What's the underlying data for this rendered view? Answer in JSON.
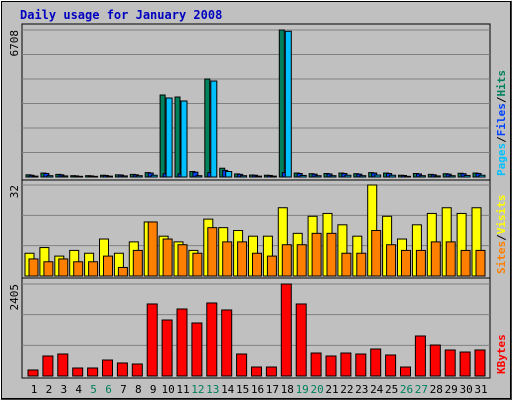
{
  "title": "Daily usage for January 2008",
  "separator": "/",
  "chart_data": [
    {
      "type": "bar",
      "series": [
        {
          "name": "Hits",
          "color": "#00805c",
          "values": [
            100,
            180,
            120,
            60,
            60,
            80,
            100,
            120,
            200,
            3742,
            3650,
            250,
            4472,
            400,
            140,
            90,
            80,
            6708,
            180,
            150,
            160,
            180,
            150,
            200,
            180,
            80,
            160,
            120,
            150,
            170,
            180
          ]
        },
        {
          "name": "Files",
          "color": "#0040ff",
          "values": [
            80,
            160,
            100,
            50,
            50,
            70,
            90,
            100,
            180,
            150,
            140,
            220,
            200,
            300,
            120,
            80,
            70,
            200,
            160,
            130,
            140,
            160,
            130,
            180,
            160,
            70,
            140,
            100,
            130,
            150,
            160
          ]
        },
        {
          "name": "Pages",
          "color": "#00c0ff",
          "values": [
            40,
            60,
            50,
            30,
            30,
            40,
            50,
            60,
            80,
            3605,
            3468,
            60,
            4380,
            250,
            60,
            40,
            40,
            6650,
            70,
            60,
            60,
            80,
            60,
            90,
            80,
            30,
            60,
            50,
            60,
            70,
            80
          ]
        }
      ],
      "legend_order": [
        2,
        1,
        0
      ],
      "ylim": [
        0,
        6708
      ],
      "yticks": [
        6708
      ]
    },
    {
      "type": "bar",
      "series": [
        {
          "name": "Visits",
          "color": "#ffff00",
          "values": [
            8,
            10,
            7,
            9,
            8,
            13,
            8,
            12,
            19,
            14,
            12,
            9,
            20,
            17,
            16,
            14,
            14,
            24,
            15,
            21,
            22,
            18,
            14,
            32,
            21,
            13,
            18,
            22,
            24,
            22,
            24
          ]
        },
        {
          "name": "Sites",
          "color": "#ff8000",
          "values": [
            6,
            5,
            6,
            5,
            5,
            7,
            3,
            9,
            19,
            13,
            11,
            8,
            17,
            12,
            12,
            8,
            7,
            11,
            11,
            15,
            15,
            8,
            8,
            16,
            11,
            9,
            9,
            12,
            12,
            9,
            9
          ]
        }
      ],
      "legend_order": [
        1,
        0
      ],
      "ylim": [
        0,
        32
      ],
      "yticks": [
        32
      ]
    },
    {
      "type": "bar",
      "categories": [
        "1",
        "2",
        "3",
        "4",
        "5",
        "6",
        "7",
        "8",
        "9",
        "10",
        "11",
        "12",
        "13",
        "14",
        "15",
        "16",
        "17",
        "18",
        "19",
        "20",
        "21",
        "22",
        "23",
        "24",
        "25",
        "26",
        "27",
        "28",
        "29",
        "30",
        "31"
      ],
      "category_colors": [
        "#000000",
        "#000000",
        "#000000",
        "#000000",
        "#00805c",
        "#00805c",
        "#000000",
        "#000000",
        "#000000",
        "#000000",
        "#000000",
        "#00805c",
        "#00805c",
        "#000000",
        "#000000",
        "#000000",
        "#000000",
        "#000000",
        "#00805c",
        "#00805c",
        "#000000",
        "#000000",
        "#000000",
        "#000000",
        "#000000",
        "#00805c",
        "#00805c",
        "#000000",
        "#000000",
        "#000000",
        "#000000"
      ],
      "series": [
        {
          "name": "KBytes",
          "color": "#ff0000",
          "values": [
            157,
            523,
            575,
            209,
            209,
            418,
            340,
            314,
            1883,
            1464,
            1752,
            1386,
            1909,
            1726,
            575,
            235,
            235,
            2405,
            1883,
            601,
            523,
            601,
            575,
            706,
            549,
            235,
            1046,
            810,
            680,
            627,
            680
          ]
        }
      ],
      "legend_order": [
        0
      ],
      "ylim": [
        0,
        2405
      ],
      "yticks": [
        2405
      ]
    }
  ]
}
